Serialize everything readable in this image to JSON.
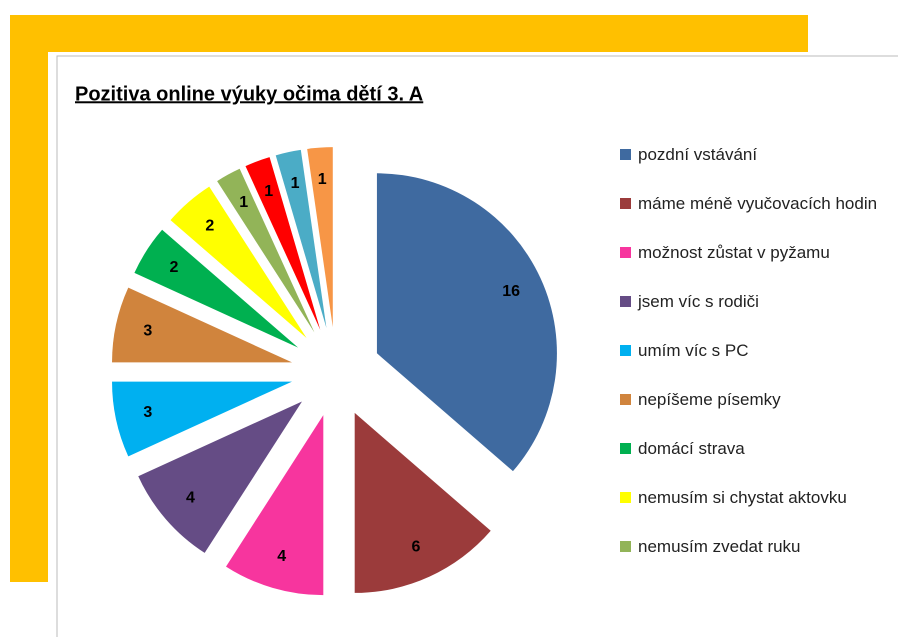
{
  "chart_data": {
    "type": "pie",
    "title": "Pozitiva online výuky očima dětí 3. A",
    "categories": [
      "pozdní vstávání",
      "máme méně vyučovacích hodin",
      "možnost zůstat v pyžamu",
      "jsem víc s rodiči",
      "umím víc s PC",
      "nepíšeme písemky",
      "domácí strava",
      "nemusím si chystat aktovku",
      "nemusím zvedat ruku",
      null,
      null,
      null
    ],
    "values": [
      16,
      6,
      4,
      4,
      3,
      3,
      2,
      2,
      1,
      1,
      1,
      1
    ],
    "colors": [
      "#3f6aa0",
      "#9b3b3b",
      "#f7359e",
      "#654c85",
      "#00b0f0",
      "#d0843d",
      "#00b050",
      "#ffff00",
      "#92b458",
      "#ff0000",
      "#4bacc6",
      "#f79646"
    ]
  }
}
